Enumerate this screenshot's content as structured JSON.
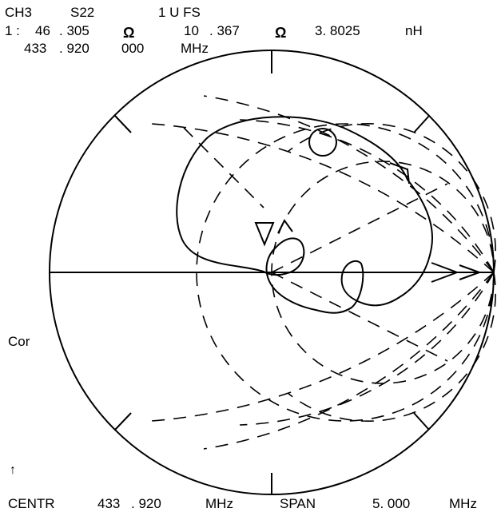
{
  "header": {
    "channel": "CH3",
    "parameter": "S22",
    "scale": "1 U FS",
    "marker_index": "1 :",
    "resistance_int": "46",
    "resistance_dec": ". 305",
    "ohm_symbol": "Ω",
    "reactance_int": "10",
    "reactance_dec": ". 367",
    "ohm_symbol_2": "Ω",
    "inductance": "3. 8025",
    "inductance_unit": "nH",
    "freq_a": "433",
    "freq_b": ". 920",
    "freq_c": "000",
    "freq_unit": "MHz"
  },
  "side": {
    "correction": "Cor",
    "marker_glyph": "↑"
  },
  "footer": {
    "centr_label": "CENTR",
    "centr_a": "433",
    "centr_b": ". 920",
    "centr_unit": "MHz",
    "span_label": "SPAN",
    "span_value": "5. 000",
    "span_unit": "MHz"
  },
  "colors": {
    "background": "#ffffff",
    "ink": "#000000"
  }
}
